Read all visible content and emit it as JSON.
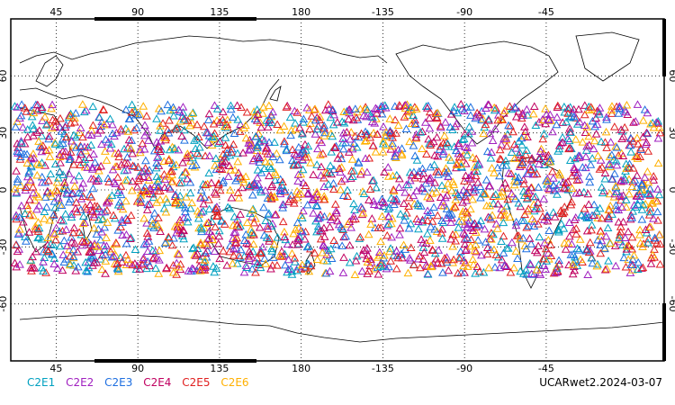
{
  "map": {
    "lon_ticks": [
      "45",
      "90",
      "135",
      "180",
      "-135",
      "-90",
      "-45"
    ],
    "lat_ticks": [
      "60",
      "30",
      "0",
      "-30",
      "-60"
    ],
    "lat_band": [
      -45,
      45
    ],
    "lon_range": [
      20,
      380
    ],
    "lat_range": [
      -90,
      90
    ],
    "background": "#ffffff",
    "coast_color": "#000000"
  },
  "legend": [
    {
      "label": "C2E1",
      "color": "#00a0c0"
    },
    {
      "label": "C2E2",
      "color": "#a020c0"
    },
    {
      "label": "C2E3",
      "color": "#1e6fe0"
    },
    {
      "label": "C2E4",
      "color": "#c00060"
    },
    {
      "label": "C2E5",
      "color": "#e02020"
    },
    {
      "label": "C2E6",
      "color": "#ffb000"
    }
  ],
  "product_label": "UCARwet2.2024-03-07"
}
